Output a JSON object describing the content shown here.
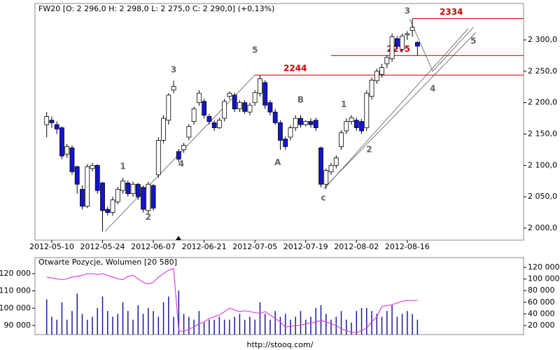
{
  "chart_data": [
    {
      "type": "candlestick",
      "title": "FW20 [O: 2 296,0  H: 2 298,0  L: 2 275,0  C: 2 290,0] (+0,13%)",
      "categories": [
        null,
        "2012-05-10",
        null,
        null,
        null,
        null,
        null,
        null,
        null,
        null,
        null,
        "2012-05-24",
        null,
        null,
        null,
        null,
        null,
        null,
        null,
        null,
        null,
        "2012-06-07",
        null,
        null,
        null,
        null,
        null,
        null,
        null,
        null,
        null,
        "2012-06-21",
        null,
        null,
        null,
        null,
        null,
        null,
        null,
        null,
        null,
        "2012-07-05",
        null,
        null,
        null,
        null,
        null,
        null,
        null,
        null,
        null,
        "2012-07-19",
        null,
        null,
        null,
        null,
        null,
        null,
        null,
        null,
        null,
        "2012-08-02",
        null,
        null,
        null,
        null,
        null,
        null,
        null,
        null,
        null,
        "2012-08-16",
        null,
        null
      ],
      "open": [
        2165,
        2172,
        2165,
        2160,
        2118,
        2128,
        2098,
        2062,
        2035,
        2095,
        2100,
        2072,
        2030,
        2025,
        2042,
        2060,
        2072,
        2055,
        2070,
        2065,
        2028,
        2068,
        2085,
        2140,
        2172,
        2220,
        2122,
        2125,
        2145,
        2170,
        2200,
        2202,
        2178,
        2168,
        2160,
        2175,
        2210,
        2212,
        2190,
        2200,
        2185,
        2200,
        2215,
        2232,
        2200,
        2185,
        2168,
        2142,
        2145,
        2160,
        2175,
        2165,
        2170,
        2172,
        2128,
        2070,
        2090,
        2100,
        2130,
        2155,
        2170,
        2172,
        2170,
        2160,
        2210,
        2235,
        2245,
        2262,
        2270,
        2302,
        2285,
        2308,
        2315,
        2296
      ],
      "high": [
        2185,
        2178,
        2170,
        2162,
        2134,
        2132,
        2100,
        2068,
        2102,
        2104,
        2102,
        2074,
        2034,
        2050,
        2066,
        2080,
        2076,
        2074,
        2072,
        2068,
        2074,
        2070,
        2145,
        2180,
        2215,
        2235,
        2126,
        2136,
        2166,
        2194,
        2220,
        2206,
        2182,
        2172,
        2176,
        2206,
        2218,
        2216,
        2204,
        2204,
        2200,
        2220,
        2244,
        2236,
        2204,
        2190,
        2172,
        2146,
        2164,
        2180,
        2180,
        2172,
        2175,
        2176,
        2130,
        2095,
        2104,
        2116,
        2156,
        2175,
        2180,
        2176,
        2174,
        2220,
        2240,
        2254,
        2262,
        2276,
        2310,
        2306,
        2310,
        2314,
        2334,
        2298
      ],
      "low": [
        2145,
        2160,
        2150,
        2110,
        2112,
        2085,
        2055,
        2030,
        2032,
        2090,
        2055,
        1995,
        2020,
        2020,
        2038,
        2055,
        2050,
        2050,
        2045,
        2025,
        2022,
        2028,
        2080,
        2135,
        2165,
        2215,
        2105,
        2120,
        2140,
        2165,
        2195,
        2175,
        2165,
        2155,
        2158,
        2170,
        2205,
        2185,
        2185,
        2182,
        2180,
        2195,
        2210,
        2190,
        2180,
        2165,
        2125,
        2125,
        2140,
        2155,
        2160,
        2162,
        2160,
        2155,
        2065,
        2062,
        2085,
        2095,
        2125,
        2150,
        2165,
        2155,
        2150,
        2155,
        2205,
        2230,
        2240,
        2255,
        2265,
        2285,
        2280,
        2300,
        2305,
        2275
      ],
      "close": [
        2178,
        2168,
        2158,
        2115,
        2130,
        2090,
        2070,
        2035,
        2098,
        2100,
        2060,
        2028,
        2025,
        2045,
        2062,
        2075,
        2055,
        2070,
        2050,
        2030,
        2070,
        2032,
        2140,
        2175,
        2212,
        2226,
        2110,
        2132,
        2162,
        2190,
        2215,
        2180,
        2170,
        2160,
        2172,
        2202,
        2215,
        2190,
        2200,
        2186,
        2196,
        2216,
        2238,
        2196,
        2185,
        2168,
        2140,
        2130,
        2160,
        2175,
        2165,
        2170,
        2165,
        2160,
        2070,
        2092,
        2100,
        2112,
        2152,
        2170,
        2176,
        2160,
        2155,
        2215,
        2236,
        2250,
        2256,
        2272,
        2305,
        2290,
        2306,
        2310,
        2320,
        2290
      ],
      "up_color": "#ffffff",
      "down_color": "#1414d2",
      "xlim": [
        -2.3,
        93.9
      ],
      "ylim": [
        1981,
        2358
      ],
      "yticks": [
        {
          "value": 2000,
          "label": "2 000,0"
        },
        {
          "value": 2050,
          "label": "2 050,0"
        },
        {
          "value": 2100,
          "label": "2 100,0"
        },
        {
          "value": 2150,
          "label": "2 150,0"
        },
        {
          "value": 2200,
          "label": "2 200,0"
        },
        {
          "value": 2250,
          "label": "2 250,0"
        },
        {
          "value": 2300,
          "label": "2 300,0"
        }
      ],
      "levels": [
        {
          "value": 2244,
          "from": 41
        },
        {
          "value": 2275,
          "from": 56
        },
        {
          "value": 2334,
          "from": 72
        }
      ],
      "level_color": "#cc0000",
      "trend_lines": [
        {
          "x": [
            11.5,
            41
          ],
          "y": [
            1995,
            2244
          ]
        },
        {
          "x": [
            54.5,
            84.5
          ],
          "y": [
            2063,
            2312
          ]
        },
        {
          "x": [
            55,
            83
          ],
          "y": [
            2066,
            2318
          ]
        },
        {
          "x": [
            71.5,
            76,
            84
          ],
          "y": [
            2333,
            2250,
            2320
          ]
        }
      ],
      "annotations": [
        {
          "text": "3",
          "x": 25,
          "y": 2252
        },
        {
          "text": "5",
          "x": 41,
          "y": 2283
        },
        {
          "text": "3",
          "x": 71,
          "y": 2346
        },
        {
          "text": "1",
          "x": 15,
          "y": 2098
        },
        {
          "text": "2",
          "x": 20,
          "y": 2017
        },
        {
          "text": "4",
          "x": 26.5,
          "y": 2102
        },
        {
          "text": "A",
          "x": 45.5,
          "y": 2104
        },
        {
          "text": "B",
          "x": 50,
          "y": 2204
        },
        {
          "text": "c",
          "x": 54.5,
          "y": 2048
        },
        {
          "text": "1",
          "x": 58.5,
          "y": 2197
        },
        {
          "text": "2",
          "x": 63.5,
          "y": 2125
        },
        {
          "text": "4",
          "x": 76,
          "y": 2222
        },
        {
          "text": "5",
          "x": 84,
          "y": 2298
        }
      ]
    },
    {
      "type": "combo",
      "title": "Otwarte Pozycje, Wolumen [20 580]",
      "xlim": [
        -2.3,
        93.9
      ],
      "ylim": [
        84700,
        129300
      ],
      "y2lim": [
        4300,
        136900
      ],
      "yticks": [
        {
          "value": 90000,
          "label": "90 000"
        },
        {
          "value": 100000,
          "label": "100 000"
        },
        {
          "value": 110000,
          "label": "110 000"
        },
        {
          "value": 120000,
          "label": "120 000"
        }
      ],
      "y2ticks": [
        {
          "value": 20000,
          "label": "20 000"
        },
        {
          "value": 40000,
          "label": "40 000"
        },
        {
          "value": 60000,
          "label": "60 000"
        },
        {
          "value": 80000,
          "label": "80 000"
        },
        {
          "value": 100000,
          "label": "100 000"
        },
        {
          "value": 120000,
          "label": "120 000"
        }
      ],
      "series": [
        {
          "type": "bar",
          "axis": "y2",
          "color": "#1a1a9a",
          "values": [
            65000,
            35000,
            30000,
            60000,
            30000,
            45000,
            75000,
            40000,
            30000,
            35000,
            50000,
            70000,
            45000,
            35000,
            40000,
            60000,
            45000,
            30000,
            55000,
            40000,
            50000,
            45000,
            35000,
            60000,
            70000,
            35000,
            80000,
            40000,
            35000,
            30000,
            45000,
            25000,
            30000,
            30000,
            35000,
            30000,
            30000,
            35000,
            40000,
            30000,
            35000,
            30000,
            60000,
            40000,
            30000,
            45000,
            35000,
            40000,
            30000,
            35000,
            45000,
            30000,
            35000,
            50000,
            55000,
            40000,
            30000,
            35000,
            45000,
            30000,
            25000,
            45000,
            50000,
            50000,
            45000,
            40000,
            35000,
            45000,
            55000,
            35000,
            40000,
            45000,
            40000,
            30000
          ]
        },
        {
          "type": "line",
          "color": "#e040e0",
          "values": [
            118000,
            117500,
            117000,
            116500,
            117000,
            118000,
            118500,
            119000,
            120000,
            120000,
            119500,
            120000,
            119000,
            118000,
            117000,
            116500,
            118500,
            119000,
            117000,
            115000,
            114000,
            115000,
            118000,
            120000,
            122000,
            123000,
            87000,
            86500,
            88000,
            89000,
            91000,
            92000,
            94000,
            95000,
            96000,
            98000,
            100000,
            99000,
            98000,
            98500,
            98000,
            97500,
            97000,
            98000,
            96000,
            94000,
            92000,
            89000,
            89500,
            90000,
            90000,
            91000,
            91500,
            92000,
            93000,
            92000,
            91000,
            90000,
            88000,
            87000,
            86000,
            85800,
            87000,
            88500,
            92000,
            95000,
            101000,
            101500,
            102000,
            103000,
            104000,
            104500,
            104500,
            104500
          ]
        }
      ]
    }
  ],
  "footer": "http://stooq.com/"
}
